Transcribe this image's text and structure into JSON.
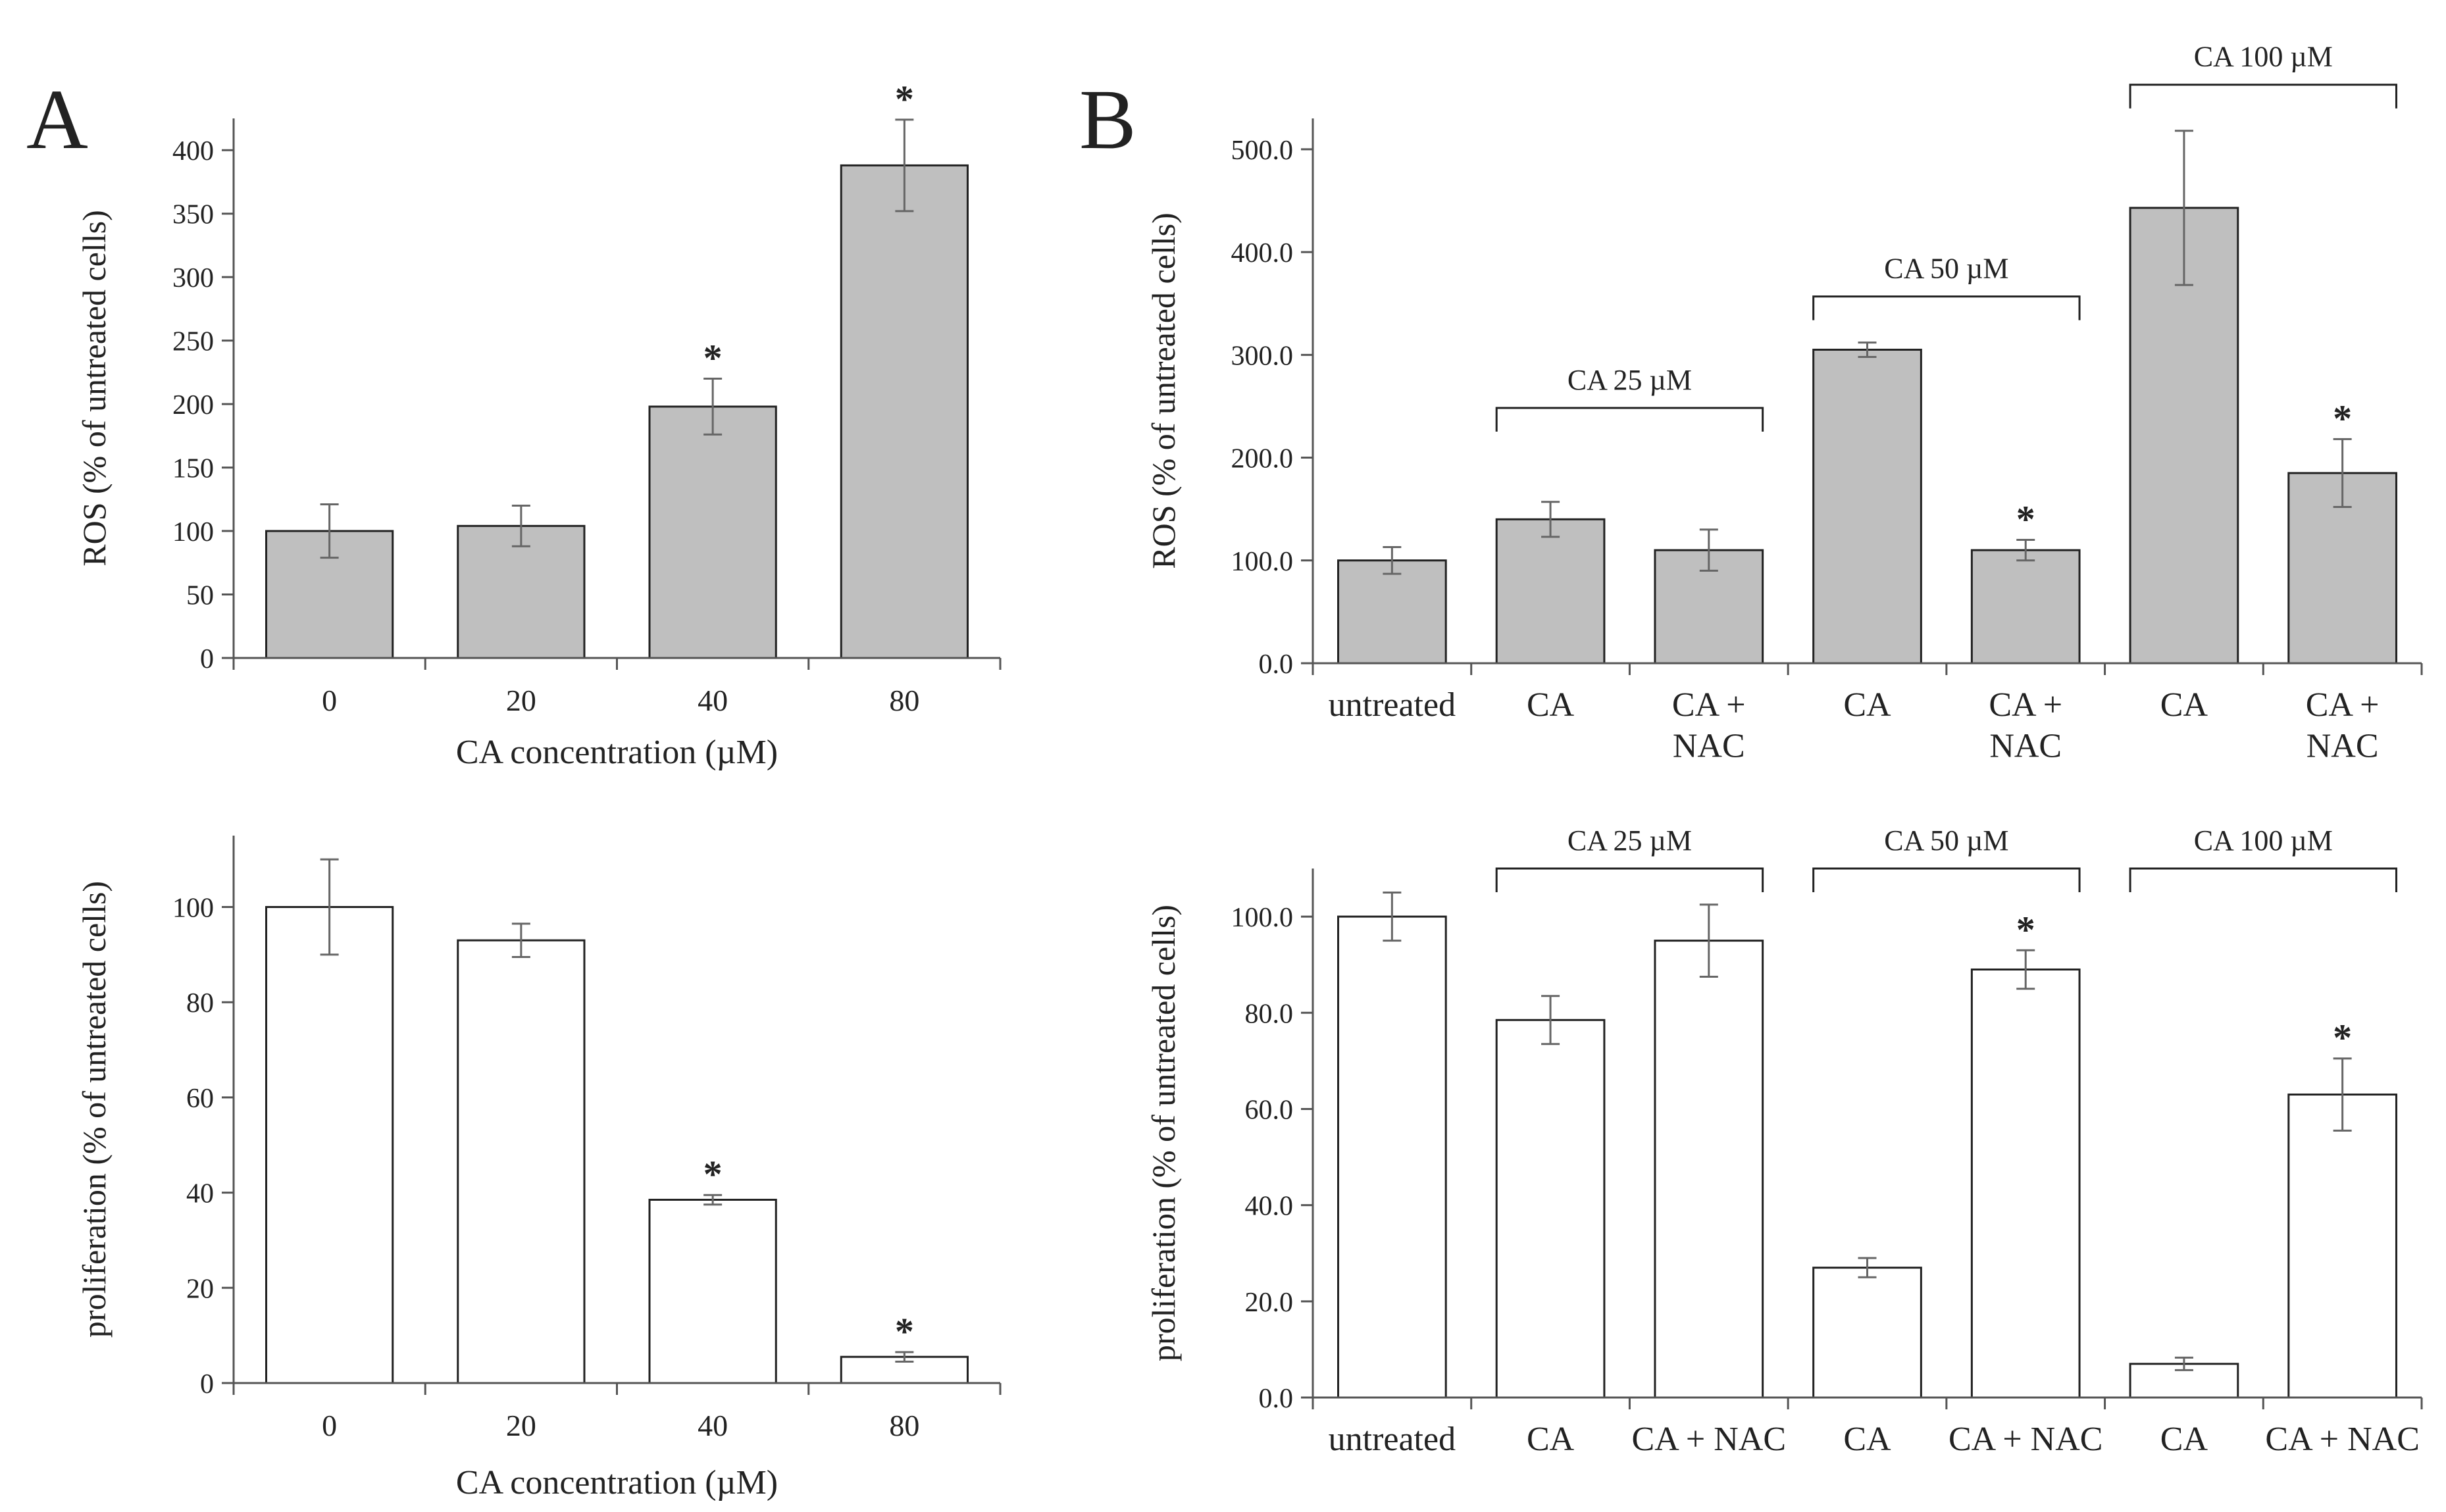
{
  "panels": {
    "A": {
      "label": "A"
    },
    "B": {
      "label": "B"
    }
  },
  "colors": {
    "ros_fill": "#bfbfbf",
    "prolif_fill": "#ffffff",
    "stroke": "#222222",
    "axis": "#555555"
  },
  "chart_data": [
    {
      "id": "A_ros",
      "panel": "A",
      "type": "bar",
      "categories": [
        "0",
        "20",
        "40",
        "80"
      ],
      "values": [
        100,
        104,
        198,
        388
      ],
      "errors": [
        21,
        16,
        22,
        36
      ],
      "significant": [
        false,
        false,
        true,
        true
      ],
      "title": "",
      "xlabel": "CA concentration  (µM)",
      "ylabel": "ROS (% of untreated cells)",
      "ylim": [
        0,
        425
      ],
      "yticks": [
        0,
        50,
        100,
        150,
        200,
        250,
        300,
        350,
        400
      ],
      "tick_decimals": 0,
      "fill": "#bfbfbf",
      "brackets": []
    },
    {
      "id": "A_prolif",
      "panel": "A",
      "type": "bar",
      "categories": [
        "0",
        "20",
        "40",
        "80"
      ],
      "values": [
        100,
        93,
        38.5,
        5.5
      ],
      "errors": [
        10,
        3.5,
        1,
        1
      ],
      "significant": [
        false,
        false,
        true,
        true
      ],
      "title": "",
      "xlabel": "CA concentration  (µM)",
      "ylabel": "proliferation  (% of untreated cells)",
      "ylim": [
        0,
        115
      ],
      "yticks": [
        0,
        20,
        40,
        60,
        80,
        100
      ],
      "tick_decimals": 0,
      "fill": "#ffffff",
      "brackets": []
    },
    {
      "id": "B_ros",
      "panel": "B",
      "type": "bar",
      "categories": [
        "untreated",
        "CA",
        "CA +\nNAC",
        "CA",
        "CA +\nNAC",
        "CA",
        "CA +\nNAC"
      ],
      "values": [
        100,
        140,
        110,
        305,
        110,
        443,
        185
      ],
      "errors": [
        13,
        17,
        20,
        7,
        10,
        75,
        33
      ],
      "significant": [
        false,
        false,
        false,
        false,
        true,
        false,
        true
      ],
      "title": "",
      "xlabel": "",
      "ylabel": "ROS  (% of untreated cells)",
      "ylim": [
        0,
        530
      ],
      "yticks": [
        0,
        100,
        200,
        300,
        400,
        500
      ],
      "tick_decimals": 1,
      "fill": "#bfbfbf",
      "brackets": [
        {
          "label": "CA 25 µM",
          "from": 1,
          "to": 2
        },
        {
          "label": "CA 50 µM",
          "from": 3,
          "to": 4
        },
        {
          "label": "CA 100 µM",
          "from": 5,
          "to": 6
        }
      ]
    },
    {
      "id": "B_prolif",
      "panel": "B",
      "type": "bar",
      "categories": [
        "untreated",
        "CA",
        "CA + NAC",
        "CA",
        "CA + NAC",
        "CA",
        "CA + NAC"
      ],
      "values": [
        100,
        78.5,
        95,
        27,
        89,
        7,
        63
      ],
      "errors": [
        5,
        5,
        7.5,
        2,
        4,
        1.3,
        7.5
      ],
      "significant": [
        false,
        false,
        false,
        false,
        true,
        false,
        true
      ],
      "title": "",
      "xlabel": "",
      "ylabel": "proliferation  (% of untreated cells)",
      "ylim": [
        0,
        110
      ],
      "yticks": [
        0,
        20,
        40,
        60,
        80,
        100
      ],
      "tick_decimals": 1,
      "fill": "#ffffff",
      "brackets": [
        {
          "label": "CA 25 µM",
          "from": 1,
          "to": 2
        },
        {
          "label": "CA 50 µM",
          "from": 3,
          "to": 4
        },
        {
          "label": "CA 100 µM",
          "from": 5,
          "to": 6
        }
      ]
    }
  ],
  "significance_marker": "*"
}
